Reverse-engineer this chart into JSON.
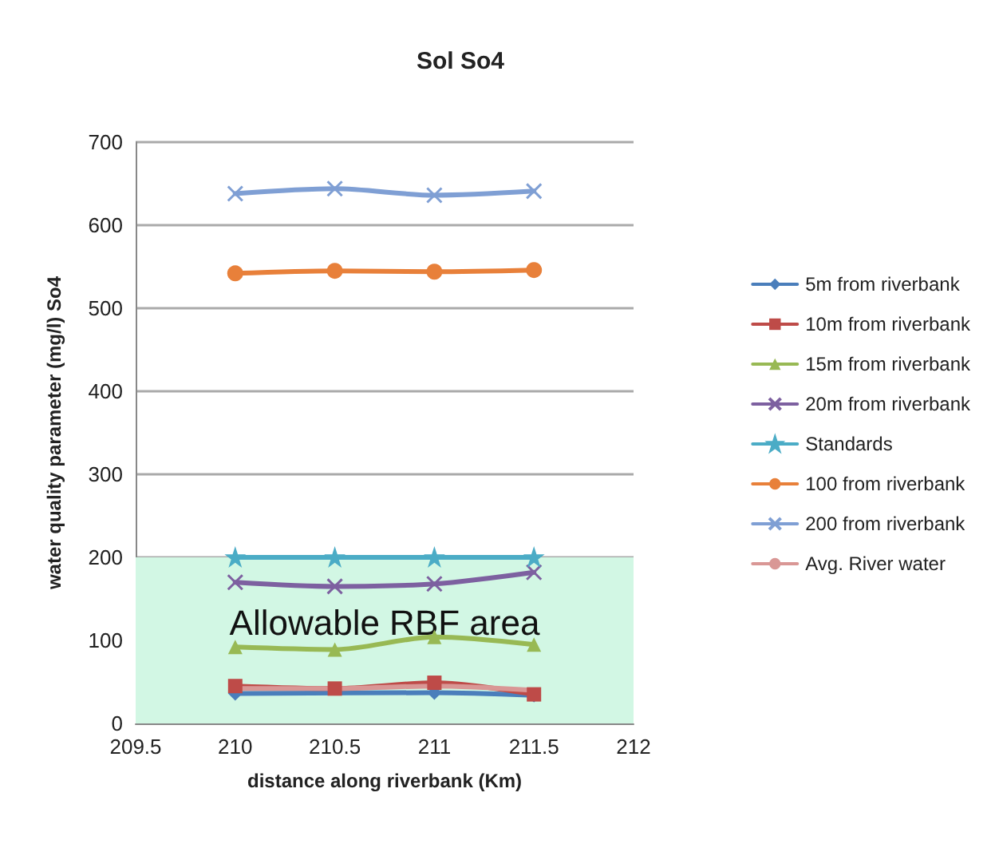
{
  "chart_data": {
    "type": "line",
    "title": "Sol So4",
    "xlabel": "distance along riverbank (Km)",
    "ylabel": "water quality parameter (mg/l) So4",
    "x": [
      210,
      210.5,
      211,
      211.5
    ],
    "series": [
      {
        "name": "5m from riverbank",
        "color": "#4a7ebb",
        "marker": "diamond",
        "values": [
          36,
          null,
          37,
          34
        ]
      },
      {
        "name": "10m from riverbank",
        "color": "#be4b48",
        "marker": "square",
        "values": [
          45,
          42,
          49,
          35
        ]
      },
      {
        "name": "15m from riverbank",
        "color": "#98b954",
        "marker": "triangle",
        "values": [
          92,
          89,
          104,
          95
        ]
      },
      {
        "name": "20m from riverbank",
        "color": "#7d60a0",
        "marker": "cross",
        "values": [
          170,
          165,
          168,
          182
        ]
      },
      {
        "name": "Standards",
        "color": "#4bacc6",
        "marker": "star",
        "values": [
          200,
          200,
          200,
          200
        ]
      },
      {
        "name": "100 from riverbank",
        "color": "#e8803a",
        "marker": "circle",
        "values": [
          542,
          545,
          544,
          546
        ]
      },
      {
        "name": "200 from riverbank",
        "color": "#7f9fd4",
        "marker": "cross",
        "values": [
          638,
          644,
          636,
          641
        ]
      },
      {
        "name": "Avg. River water",
        "color": "#d99795",
        "marker": "none",
        "values": [
          42,
          42,
          45,
          40
        ]
      }
    ],
    "xlim": [
      209.5,
      212
    ],
    "xticks": [
      209.5,
      210,
      210.5,
      211,
      211.5,
      212
    ],
    "ylim": [
      0,
      700
    ],
    "yticks": [
      0,
      100,
      200,
      300,
      400,
      500,
      600,
      700
    ],
    "bands": [
      {
        "axis": "y",
        "from": 0,
        "to": 200,
        "label": "Allowable RBF area",
        "color": "#d2f7e4"
      }
    ],
    "grid": "y",
    "legend": "right"
  }
}
